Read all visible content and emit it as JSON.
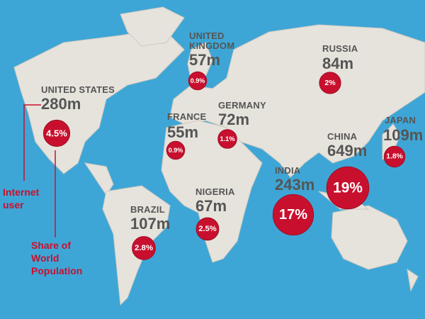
{
  "countries": [
    {
      "name": "UNITED STATES",
      "users": "280m",
      "share": 4.5,
      "share_label": "4.5%"
    },
    {
      "name": "UNITED KINGDOM",
      "users": "57m",
      "share": 0.9,
      "share_label": "0.9%"
    },
    {
      "name": "FRANCE",
      "users": "55m",
      "share": 0.9,
      "share_label": "0.9%"
    },
    {
      "name": "GERMANY",
      "users": "72m",
      "share": 1.1,
      "share_label": "1.1%"
    },
    {
      "name": "RUSSIA",
      "users": "84m",
      "share": 2,
      "share_label": "2%"
    },
    {
      "name": "JAPAN",
      "users": "109m",
      "share": 1.8,
      "share_label": "1.8%"
    },
    {
      "name": "CHINA",
      "users": "649m",
      "share": 19,
      "share_label": "19%"
    },
    {
      "name": "INDIA",
      "users": "243m",
      "share": 17,
      "share_label": "17%"
    },
    {
      "name": "NIGERIA",
      "users": "67m",
      "share": 2.5,
      "share_label": "2.5%"
    },
    {
      "name": "BRAZIL",
      "users": "107m",
      "share": 2.8,
      "share_label": "2.8%"
    }
  ],
  "legend": {
    "users": "Internet user",
    "share": "Share of World Population"
  }
}
